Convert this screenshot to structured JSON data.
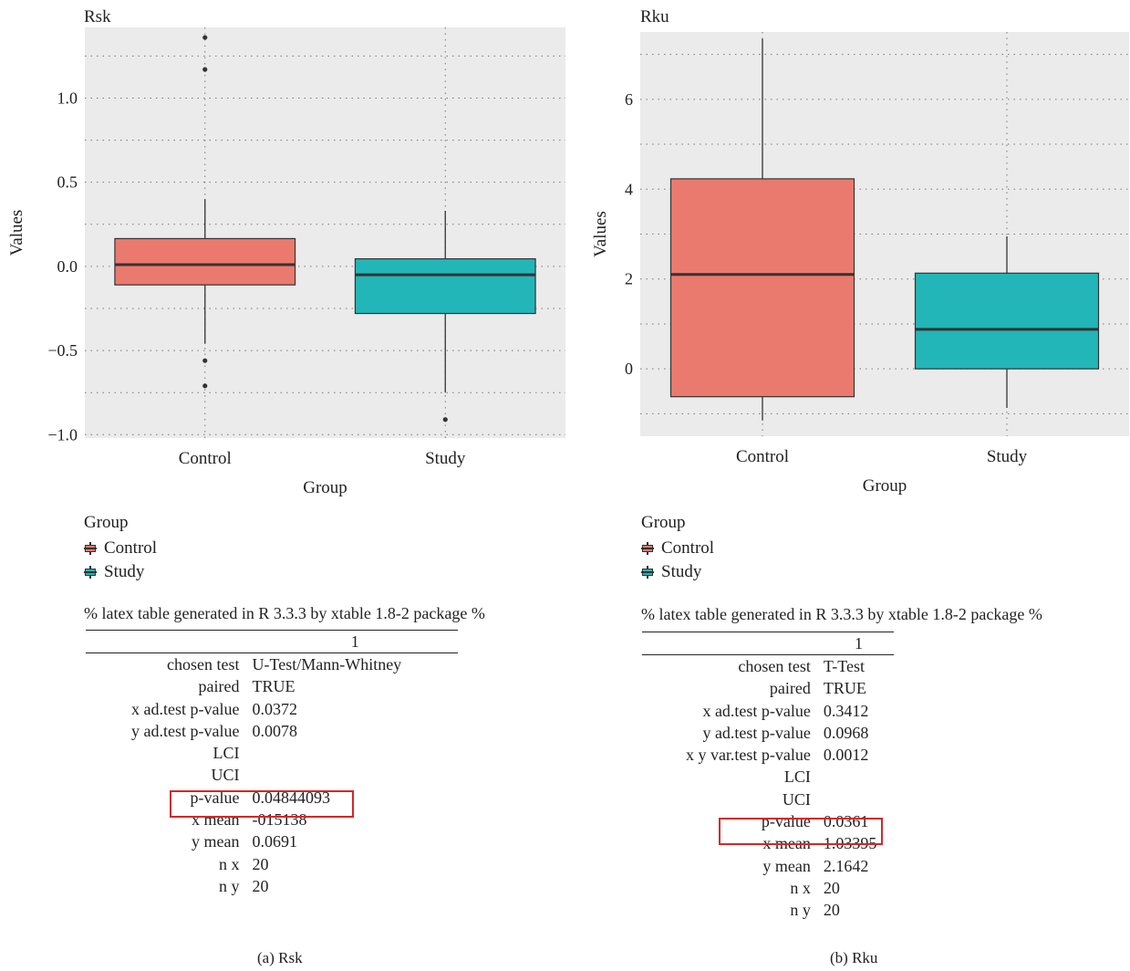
{
  "colors": {
    "control": "#EB7A6E",
    "study": "#22B6B8",
    "panel_bg": "#EBEBEB",
    "highlight": "#D62728"
  },
  "chart_data": [
    {
      "type": "box",
      "title": "Rsk",
      "xlabel": "Group",
      "ylabel": "Values",
      "categories": [
        "Control",
        "Study"
      ],
      "ylim": [
        -1.02,
        1.42
      ],
      "yticks": [
        -1.0,
        -0.5,
        0.0,
        0.5,
        1.0
      ],
      "ytick_labels": [
        "−1.0",
        "−0.5",
        "0.0",
        "0.5",
        "1.0"
      ],
      "grid": true,
      "boxes": [
        {
          "group": "Control",
          "q1": -0.11,
          "median": 0.01,
          "q3": 0.165,
          "lower": -0.46,
          "upper": 0.4,
          "outliers": [
            1.36,
            1.17,
            -0.56,
            -0.71
          ]
        },
        {
          "group": "Study",
          "q1": -0.28,
          "median": -0.05,
          "q3": 0.045,
          "lower": -0.75,
          "upper": 0.33,
          "outliers": [
            -0.91
          ]
        }
      ],
      "legend_title": "Group",
      "legend_entries": [
        "Control",
        "Study"
      ]
    },
    {
      "type": "box",
      "title": "Rku",
      "xlabel": "Group",
      "ylabel": "Values",
      "categories": [
        "Control",
        "Study"
      ],
      "ylim": [
        -1.5,
        7.5
      ],
      "yticks": [
        0,
        2,
        4,
        6
      ],
      "ytick_labels": [
        "0",
        "2",
        "4",
        "6"
      ],
      "grid": true,
      "boxes": [
        {
          "group": "Control",
          "q1": -0.62,
          "median": 2.1,
          "q3": 4.23,
          "lower": -1.15,
          "upper": 7.35,
          "outliers": []
        },
        {
          "group": "Study",
          "q1": 0.0,
          "median": 0.88,
          "q3": 2.13,
          "lower": -0.87,
          "upper": 2.95,
          "outliers": []
        }
      ],
      "legend_title": "Group",
      "legend_entries": [
        "Control",
        "Study"
      ]
    }
  ],
  "panel_a": {
    "legend": {
      "title": "Group",
      "items": [
        "Control",
        "Study"
      ]
    },
    "note": "% latex table generated in R 3.3.3 by xtable 1.8-2 package %",
    "table_header": "1",
    "rows": [
      {
        "k": "chosen test",
        "v": "U-Test/Mann-Whitney"
      },
      {
        "k": "paired",
        "v": "TRUE"
      },
      {
        "k": "x ad.test p-value",
        "v": "0.0372"
      },
      {
        "k": "y ad.test p-value",
        "v": "0.0078"
      },
      {
        "k": "LCI",
        "v": ""
      },
      {
        "k": "UCI",
        "v": ""
      },
      {
        "k": "p-value",
        "v": "0.04844093"
      },
      {
        "k": "x mean",
        "v": "-015138"
      },
      {
        "k": "y mean",
        "v": "0.0691"
      },
      {
        "k": "n x",
        "v": "20"
      },
      {
        "k": "n y",
        "v": "20"
      }
    ],
    "caption": "(a)  Rsk"
  },
  "panel_b": {
    "legend": {
      "title": "Group",
      "items": [
        "Control",
        "Study"
      ]
    },
    "note": "% latex table generated in R 3.3.3 by xtable 1.8-2 package %",
    "table_header": "1",
    "rows": [
      {
        "k": "chosen test",
        "v": "T-Test"
      },
      {
        "k": "paired",
        "v": "TRUE"
      },
      {
        "k": "x ad.test p-value",
        "v": "0.3412"
      },
      {
        "k": "y ad.test p-value",
        "v": "0.0968"
      },
      {
        "k": "x y var.test p-value",
        "v": "0.0012"
      },
      {
        "k": "LCI",
        "v": ""
      },
      {
        "k": "UCI",
        "v": ""
      },
      {
        "k": "p-value",
        "v": "0.0361"
      },
      {
        "k": "x mean",
        "v": "1.03395"
      },
      {
        "k": "y mean",
        "v": "2.1642"
      },
      {
        "k": "n x",
        "v": "20"
      },
      {
        "k": "n y",
        "v": "20"
      }
    ],
    "caption": "(b)  Rku"
  }
}
